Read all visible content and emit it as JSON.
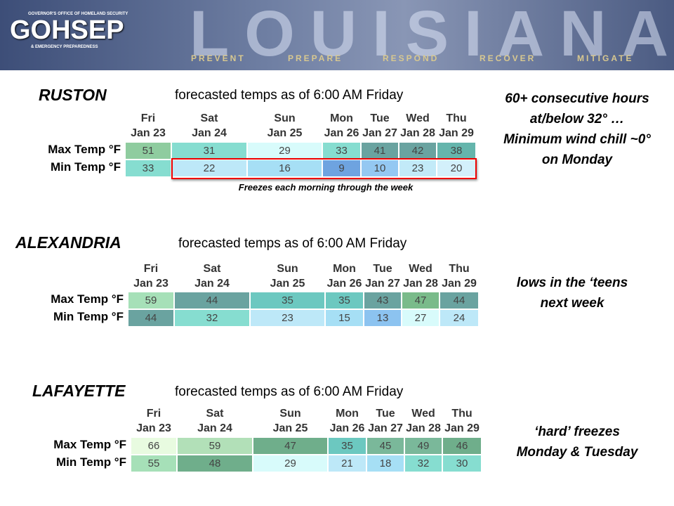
{
  "header": {
    "org_line": "GOVERNOR'S OFFICE OF HOMELAND SECURITY",
    "logo": "GOHSEP",
    "org_line2": "& EMERGENCY PREPAREDNESS",
    "state": "LOUISIANA",
    "motto": [
      "PREVENT",
      "PREPARE",
      "RESPOND",
      "RECOVER",
      "MITIGATE"
    ]
  },
  "sections": [
    {
      "city": "RUSTON",
      "subtitle": "forecasted temps as of 6:00 AM Friday",
      "days": [
        [
          "Fri",
          "Jan 23"
        ],
        [
          "Sat",
          "Jan 24"
        ],
        [
          "Sun",
          "Jan 25"
        ],
        [
          "Mon",
          "Jan 26"
        ],
        [
          "Tue",
          "Jan 27"
        ],
        [
          "Wed",
          "Jan 28"
        ],
        [
          "Thu",
          "Jan 29"
        ]
      ],
      "rows": [
        {
          "label": "Max Temp °F",
          "values": [
            51,
            31,
            29,
            33,
            41,
            42,
            38
          ],
          "colors": [
            "#8fcc9f",
            "#86ddd0",
            "#d8fbfb",
            "#86ddd0",
            "#6aa3a0",
            "#6aa3a0",
            "#65b5ac"
          ]
        },
        {
          "label": "Min Temp °F",
          "values": [
            33,
            22,
            16,
            9,
            10,
            23,
            20
          ],
          "colors": [
            "#86ddd0",
            "#bde8f8",
            "#a6dff5",
            "#6ea3e0",
            "#94c8f2",
            "#c2eaf8",
            "#d3f0fb"
          ]
        }
      ],
      "note": [
        "60+ consecutive hours",
        "at/below 32° …",
        "Minimum wind chill ~0°",
        "on Monday"
      ],
      "annotation": "Freezes each morning through the week"
    },
    {
      "city": "ALEXANDRIA",
      "subtitle": "forecasted temps as of 6:00 AM Friday",
      "days": [
        [
          "Fri",
          "Jan 23"
        ],
        [
          "Sat",
          "Jan 24"
        ],
        [
          "Sun",
          "Jan 25"
        ],
        [
          "Mon",
          "Jan 26"
        ],
        [
          "Tue",
          "Jan 27"
        ],
        [
          "Wed",
          "Jan 28"
        ],
        [
          "Thu",
          "Jan 29"
        ]
      ],
      "rows": [
        {
          "label": "Max Temp °F",
          "values": [
            59,
            44,
            35,
            35,
            43,
            47,
            44
          ],
          "colors": [
            "#a6e0b8",
            "#6aa3a0",
            "#6cc8c0",
            "#6cc8c0",
            "#6aa3a0",
            "#7abb8a",
            "#6aa3a0"
          ]
        },
        {
          "label": "Min Temp °F",
          "values": [
            44,
            32,
            23,
            15,
            13,
            27,
            24
          ],
          "colors": [
            "#6aa3a0",
            "#86ddd0",
            "#bde8f8",
            "#a6dff5",
            "#8cc3f0",
            "#d8fbfb",
            "#bde8f8"
          ]
        }
      ],
      "note": [
        "lows in the ‘teens",
        "next week"
      ]
    },
    {
      "city": "LAFAYETTE",
      "subtitle": "forecasted temps as of 6:00 AM Friday",
      "days": [
        [
          "Fri",
          "Jan 23"
        ],
        [
          "Sat",
          "Jan 24"
        ],
        [
          "Sun",
          "Jan 25"
        ],
        [
          "Mon",
          "Jan 26"
        ],
        [
          "Tue",
          "Jan 27"
        ],
        [
          "Wed",
          "Jan 28"
        ],
        [
          "Thu",
          "Jan 29"
        ]
      ],
      "rows": [
        {
          "label": "Max Temp °F",
          "values": [
            66,
            59,
            47,
            35,
            45,
            49,
            46
          ],
          "colors": [
            "#e8fbe0",
            "#b2e0b8",
            "#6fae8b",
            "#6cc8c0",
            "#7ab89a",
            "#7ab89a",
            "#6fae8b"
          ]
        },
        {
          "label": "Min Temp °F",
          "values": [
            55,
            48,
            29,
            21,
            18,
            32,
            30
          ],
          "colors": [
            "#a6e0b8",
            "#6fae8b",
            "#d8fbfb",
            "#bde8f8",
            "#a6dff5",
            "#86ddd0",
            "#86ddd0"
          ]
        }
      ],
      "note": [
        "‘hard’ freezes",
        "Monday & Tuesday"
      ]
    }
  ]
}
